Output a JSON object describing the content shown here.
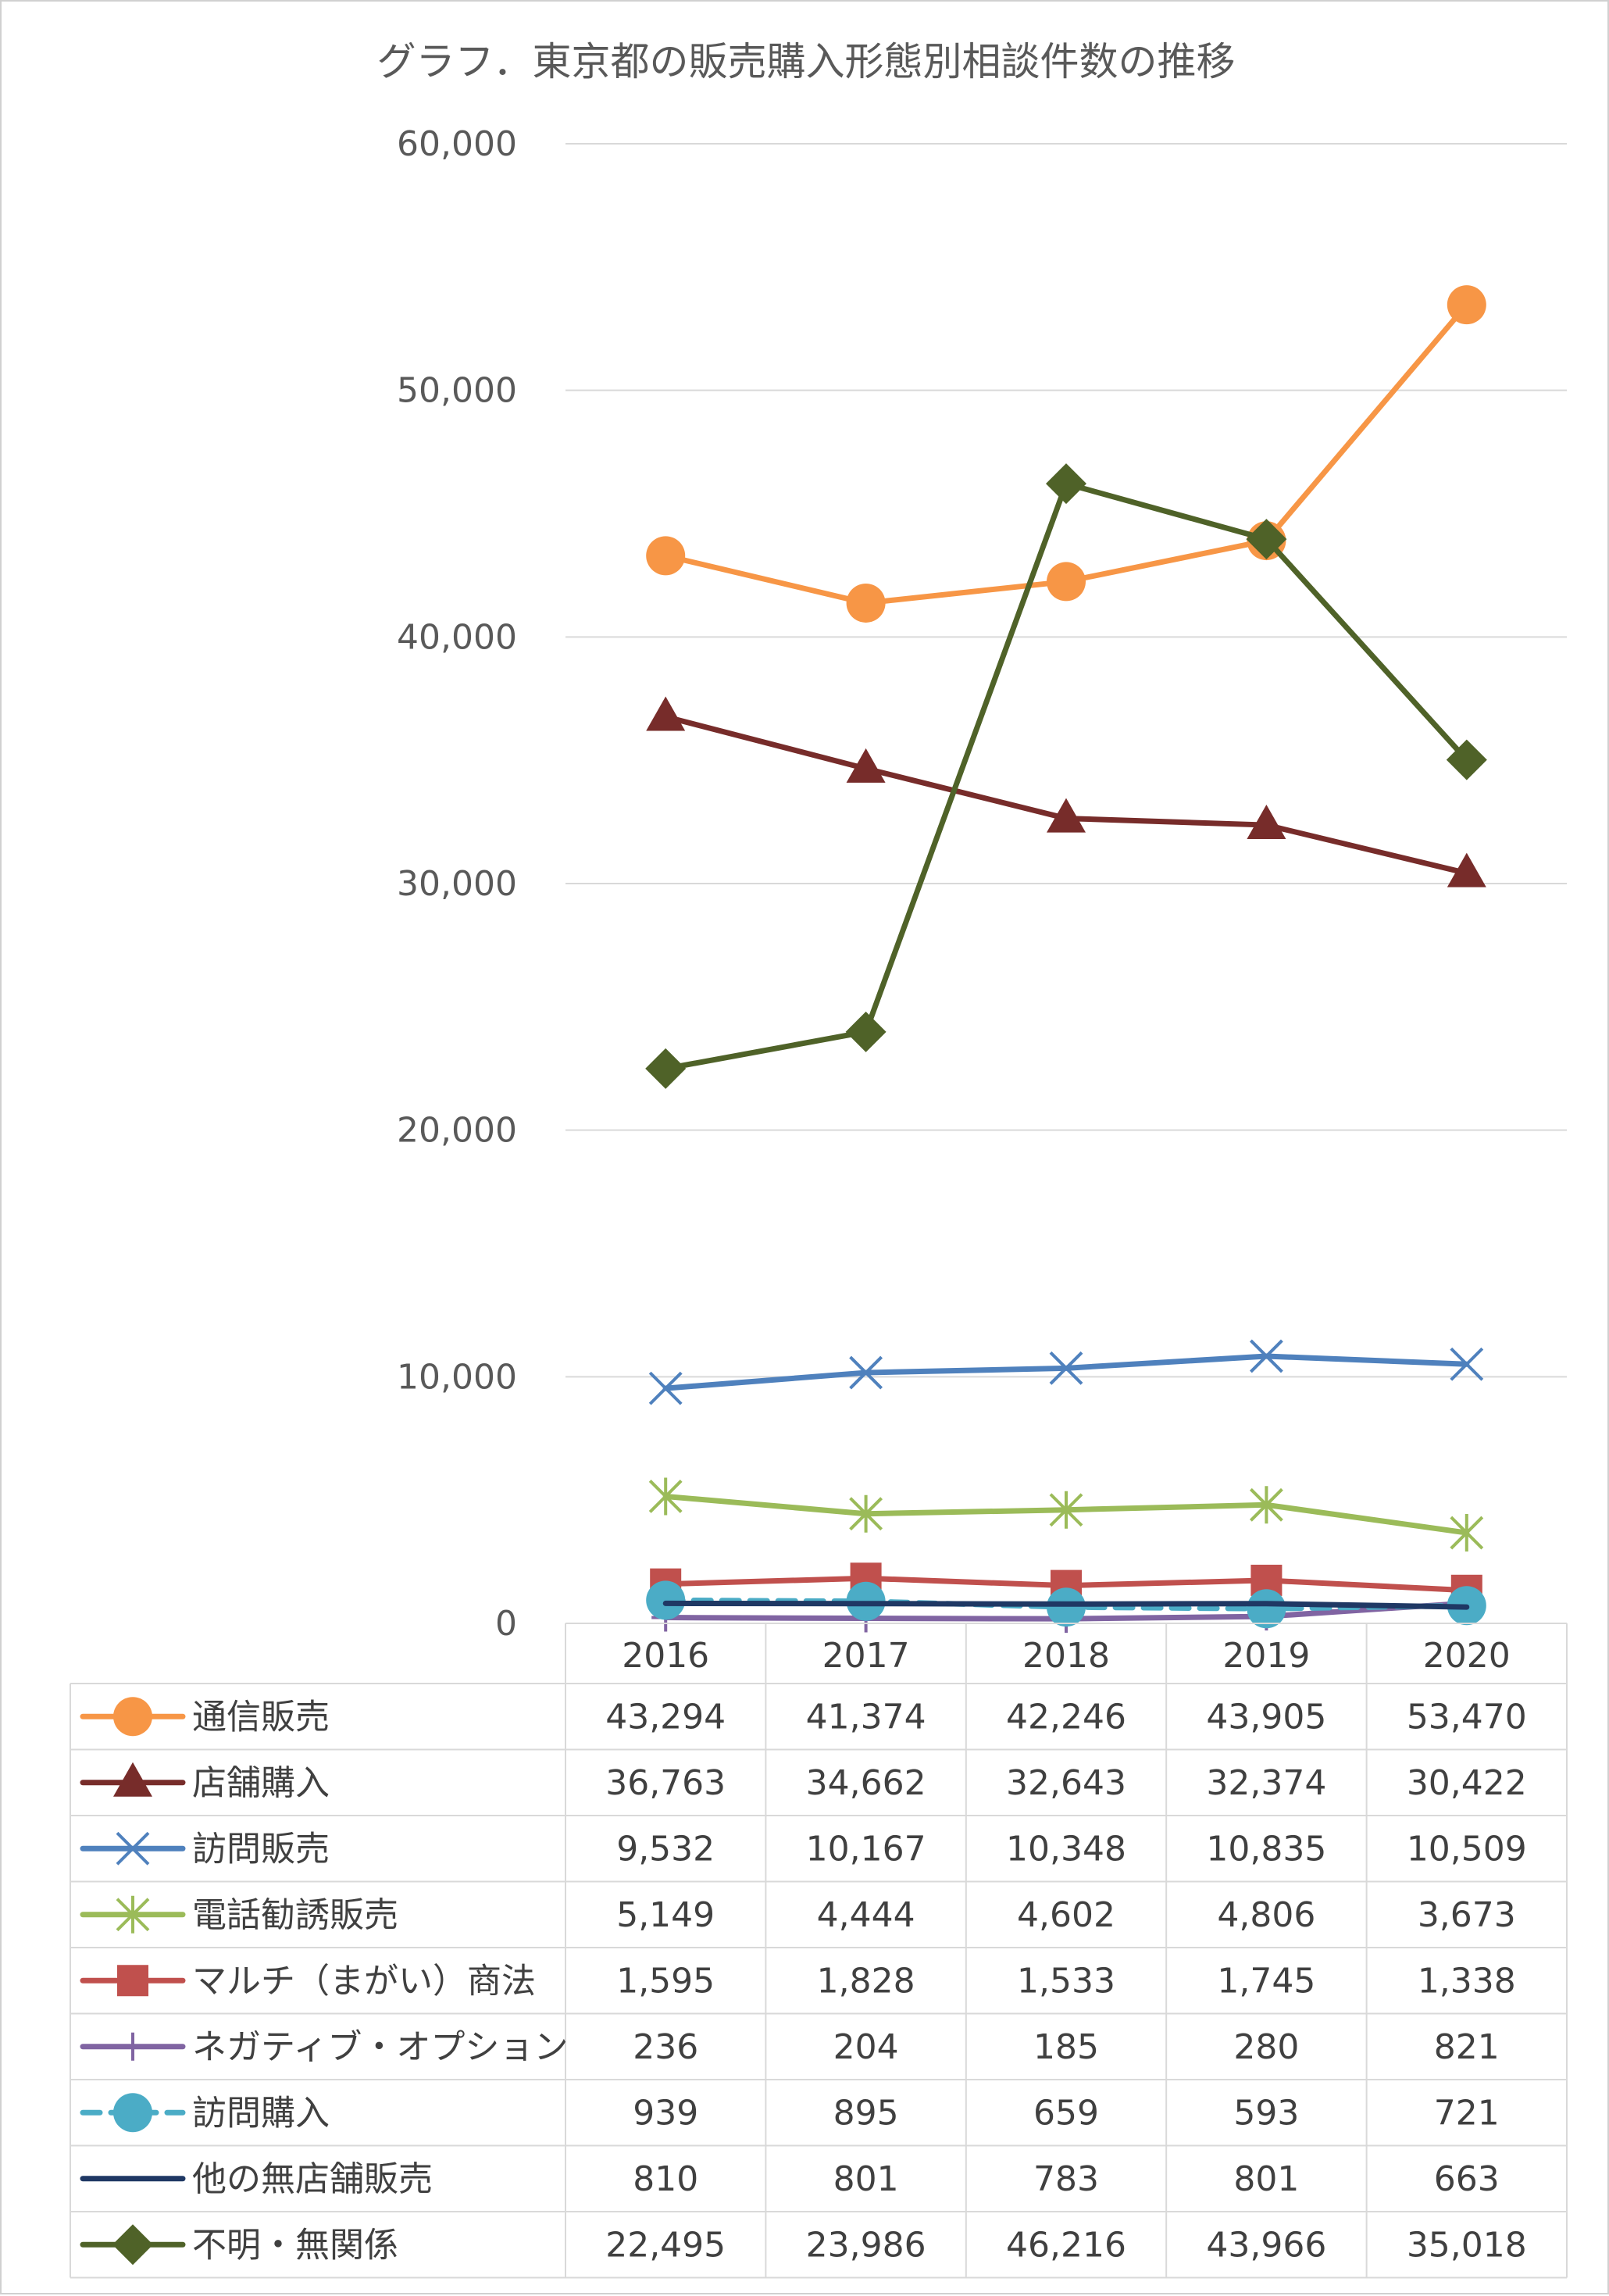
{
  "chart_data": {
    "type": "line",
    "title": "グラフ．東京都の販売購入形態別相談件数の推移",
    "categories": [
      "2016",
      "2017",
      "2018",
      "2019",
      "2020"
    ],
    "ylim": [
      0,
      60000
    ],
    "yticks": [
      "0",
      "10,000",
      "20,000",
      "30,000",
      "40,000",
      "50,000",
      "60,000"
    ],
    "grid": true,
    "legend": "data-table",
    "series": [
      {
        "name": "通信販売",
        "values": [
          43294,
          41374,
          42246,
          43905,
          53470
        ],
        "labels": [
          "43,294",
          "41,374",
          "42,246",
          "43,905",
          "53,470"
        ],
        "color": "#F79646",
        "marker": "circle"
      },
      {
        "name": "店舗購入",
        "values": [
          36763,
          34662,
          32643,
          32374,
          30422
        ],
        "labels": [
          "36,763",
          "34,662",
          "32,643",
          "32,374",
          "30,422"
        ],
        "color": "#772C2A",
        "marker": "triangle"
      },
      {
        "name": "訪問販売",
        "values": [
          9532,
          10167,
          10348,
          10835,
          10509
        ],
        "labels": [
          "9,532",
          "10,167",
          "10,348",
          "10,835",
          "10,509"
        ],
        "color": "#4F81BD",
        "marker": "x"
      },
      {
        "name": "電話勧誘販売",
        "values": [
          5149,
          4444,
          4602,
          4806,
          3673
        ],
        "labels": [
          "5,149",
          "4,444",
          "4,602",
          "4,806",
          "3,673"
        ],
        "color": "#9BBB59",
        "marker": "star"
      },
      {
        "name": "マルチ（まがい）商法",
        "values": [
          1595,
          1828,
          1533,
          1745,
          1338
        ],
        "labels": [
          "1,595",
          "1,828",
          "1,533",
          "1,745",
          "1,338"
        ],
        "color": "#C0504D",
        "marker": "square"
      },
      {
        "name": "ネガティブ・オプション",
        "values": [
          236,
          204,
          185,
          280,
          821
        ],
        "labels": [
          "236",
          "204",
          "185",
          "280",
          "821"
        ],
        "color": "#8064A2",
        "marker": "plus"
      },
      {
        "name": "訪問購入",
        "values": [
          939,
          895,
          659,
          593,
          721
        ],
        "labels": [
          "939",
          "895",
          "659",
          "593",
          "721"
        ],
        "color": "#4BACC6",
        "marker": "circle",
        "dashed": true
      },
      {
        "name": "他の無店舗販売",
        "values": [
          810,
          801,
          783,
          801,
          663
        ],
        "labels": [
          "810",
          "801",
          "783",
          "801",
          "663"
        ],
        "color": "#1F3864",
        "marker": "none"
      },
      {
        "name": "不明・無関係",
        "values": [
          22495,
          23986,
          46216,
          43966,
          35018
        ],
        "labels": [
          "22,495",
          "23,986",
          "46,216",
          "43,966",
          "35,018"
        ],
        "color": "#4F6228",
        "marker": "diamond"
      }
    ]
  }
}
